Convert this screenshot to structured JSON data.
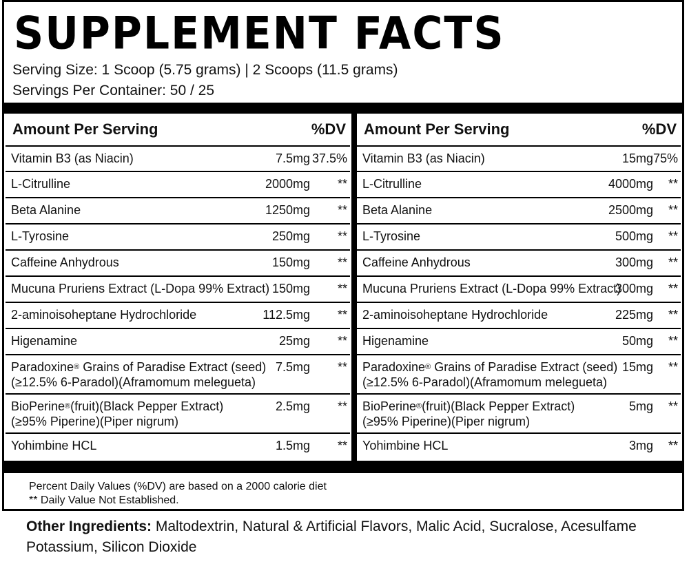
{
  "title": "SUPPLEMENT FACTS",
  "serving_size": "Serving Size: 1 Scoop (5.75 grams) | 2 Scoops (11.5 grams)",
  "servings_per_container": "Servings Per Container: 50 / 25",
  "header": {
    "amount": "Amount Per Serving",
    "dv": "%DV"
  },
  "left_rows": [
    {
      "name": "Vitamin B3 (as Niacin)",
      "amount": "7.5mg",
      "dv": "37.5%"
    },
    {
      "name": "L-Citrulline",
      "amount": "2000mg",
      "dv": "**"
    },
    {
      "name": "Beta Alanine",
      "amount": "1250mg",
      "dv": "**"
    },
    {
      "name": "L-Tyrosine",
      "amount": "250mg",
      "dv": "**"
    },
    {
      "name": "Caffeine Anhydrous",
      "amount": "150mg",
      "dv": "**"
    },
    {
      "name": "Mucuna Pruriens Extract (L-Dopa 99% Extract)",
      "amount": "150mg",
      "dv": "**"
    },
    {
      "name": "2-aminoisoheptane Hydrochloride",
      "amount": "112.5mg",
      "dv": "**"
    },
    {
      "name": "Higenamine",
      "amount": "25mg",
      "dv": "**"
    },
    {
      "name_a": "Paradoxine",
      "reg": "®",
      "name_b": " Grains of Paradise Extract (seed)",
      "name2": "(≥12.5% 6-Paradol)(Aframomum melegueta)",
      "amount": "7.5mg",
      "dv": "**"
    },
    {
      "name_a": "BioPerine",
      "reg": "®",
      "name_b": "(fruit)(Black Pepper Extract)",
      "name2": "(≥95% Piperine)(Piper nigrum)",
      "amount": "2.5mg",
      "dv": "**"
    },
    {
      "name": "Yohimbine HCL",
      "amount": "1.5mg",
      "dv": "**"
    }
  ],
  "right_rows": [
    {
      "name": "Vitamin B3 (as Niacin)",
      "amount": "15mg",
      "dv": "75%"
    },
    {
      "name": "L-Citrulline",
      "amount": "4000mg",
      "dv": "**"
    },
    {
      "name": "Beta Alanine",
      "amount": "2500mg",
      "dv": "**"
    },
    {
      "name": "L-Tyrosine",
      "amount": "500mg",
      "dv": "**"
    },
    {
      "name": "Caffeine Anhydrous",
      "amount": "300mg",
      "dv": "**"
    },
    {
      "name": "Mucuna Pruriens Extract (L-Dopa 99% Extract)",
      "amount": "300mg",
      "dv": "**"
    },
    {
      "name": "2-aminoisoheptane Hydrochloride",
      "amount": "225mg",
      "dv": "**"
    },
    {
      "name": "Higenamine",
      "amount": "50mg",
      "dv": "**"
    },
    {
      "name_a": "Paradoxine",
      "reg": "®",
      "name_b": " Grains of Paradise Extract (seed)",
      "name2": "(≥12.5% 6-Paradol)(Aframomum melegueta)",
      "amount": "15mg",
      "dv": "**"
    },
    {
      "name_a": "BioPerine",
      "reg": "®",
      "name_b": "(fruit)(Black Pepper Extract)",
      "name2": "(≥95% Piperine)(Piper nigrum)",
      "amount": "5mg",
      "dv": "**"
    },
    {
      "name": "Yohimbine HCL",
      "amount": "3mg",
      "dv": "**"
    }
  ],
  "footnote_1": "Percent Daily Values (%DV) are  based on a 2000 calorie diet",
  "footnote_2": "** Daily Value Not Established.",
  "other_ingredients_label": "Other Ingredients:",
  "other_ingredients_text": " Maltodextrin, Natural & Artificial Flavors, Malic Acid, Sucralose, Acesulfame Potassium, Silicon Dioxide"
}
